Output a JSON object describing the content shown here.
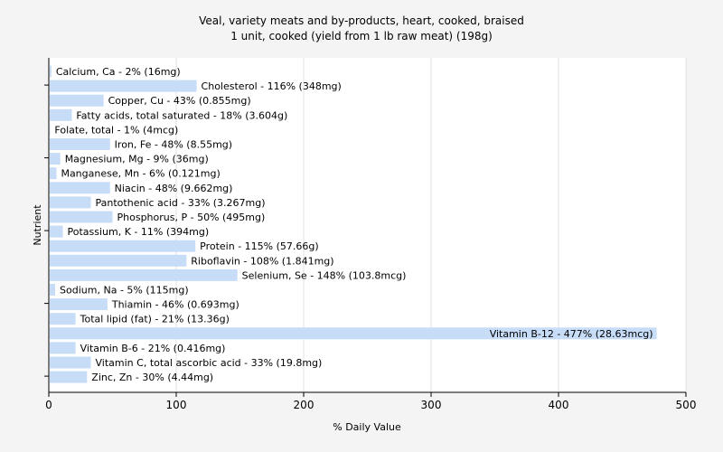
{
  "chart_data": {
    "type": "bar",
    "orientation": "horizontal",
    "title": "Veal, variety meats and by-products, heart, cooked, braised",
    "subtitle": "1 unit, cooked (yield from 1 lb raw meat) (198g)",
    "xlabel": "% Daily Value",
    "ylabel": "Nutrient",
    "xlim": [
      0,
      500
    ],
    "xticks": [
      0,
      100,
      200,
      300,
      400,
      500
    ],
    "grid": true,
    "bar_color": "#c6dcf7",
    "categories": [
      "Calcium, Ca",
      "Cholesterol",
      "Copper, Cu",
      "Fatty acids, total saturated",
      "Folate, total",
      "Iron, Fe",
      "Magnesium, Mg",
      "Manganese, Mn",
      "Niacin",
      "Pantothenic acid",
      "Phosphorus, P",
      "Potassium, K",
      "Protein",
      "Riboflavin",
      "Selenium, Se",
      "Sodium, Na",
      "Thiamin",
      "Total lipid (fat)",
      "Vitamin B-12",
      "Vitamin B-6",
      "Vitamin C, total ascorbic acid",
      "Zinc, Zn"
    ],
    "values": [
      2,
      116,
      43,
      18,
      1,
      48,
      9,
      6,
      48,
      33,
      50,
      11,
      115,
      108,
      148,
      5,
      46,
      21,
      477,
      21,
      33,
      30
    ],
    "labels": [
      "Calcium, Ca - 2% (16mg)",
      "Cholesterol - 116% (348mg)",
      "Copper, Cu - 43% (0.855mg)",
      "Fatty acids, total saturated - 18% (3.604g)",
      "Folate, total - 1% (4mcg)",
      "Iron, Fe - 48% (8.55mg)",
      "Magnesium, Mg - 9% (36mg)",
      "Manganese, Mn - 6% (0.121mg)",
      "Niacin - 48% (9.662mg)",
      "Pantothenic acid - 33% (3.267mg)",
      "Phosphorus, P - 50% (495mg)",
      "Potassium, K - 11% (394mg)",
      "Protein - 115% (57.66g)",
      "Riboflavin - 108% (1.841mg)",
      "Selenium, Se - 148% (103.8mcg)",
      "Sodium, Na - 5% (115mg)",
      "Thiamin - 46% (0.693mg)",
      "Total lipid (fat) - 21% (13.36g)",
      "Vitamin B-12 - 477% (28.63mcg)",
      "Vitamin B-6 - 21% (0.416mg)",
      "Vitamin C, total ascorbic acid - 33% (19.8mg)",
      "Zinc, Zn - 30% (4.44mg)"
    ]
  }
}
